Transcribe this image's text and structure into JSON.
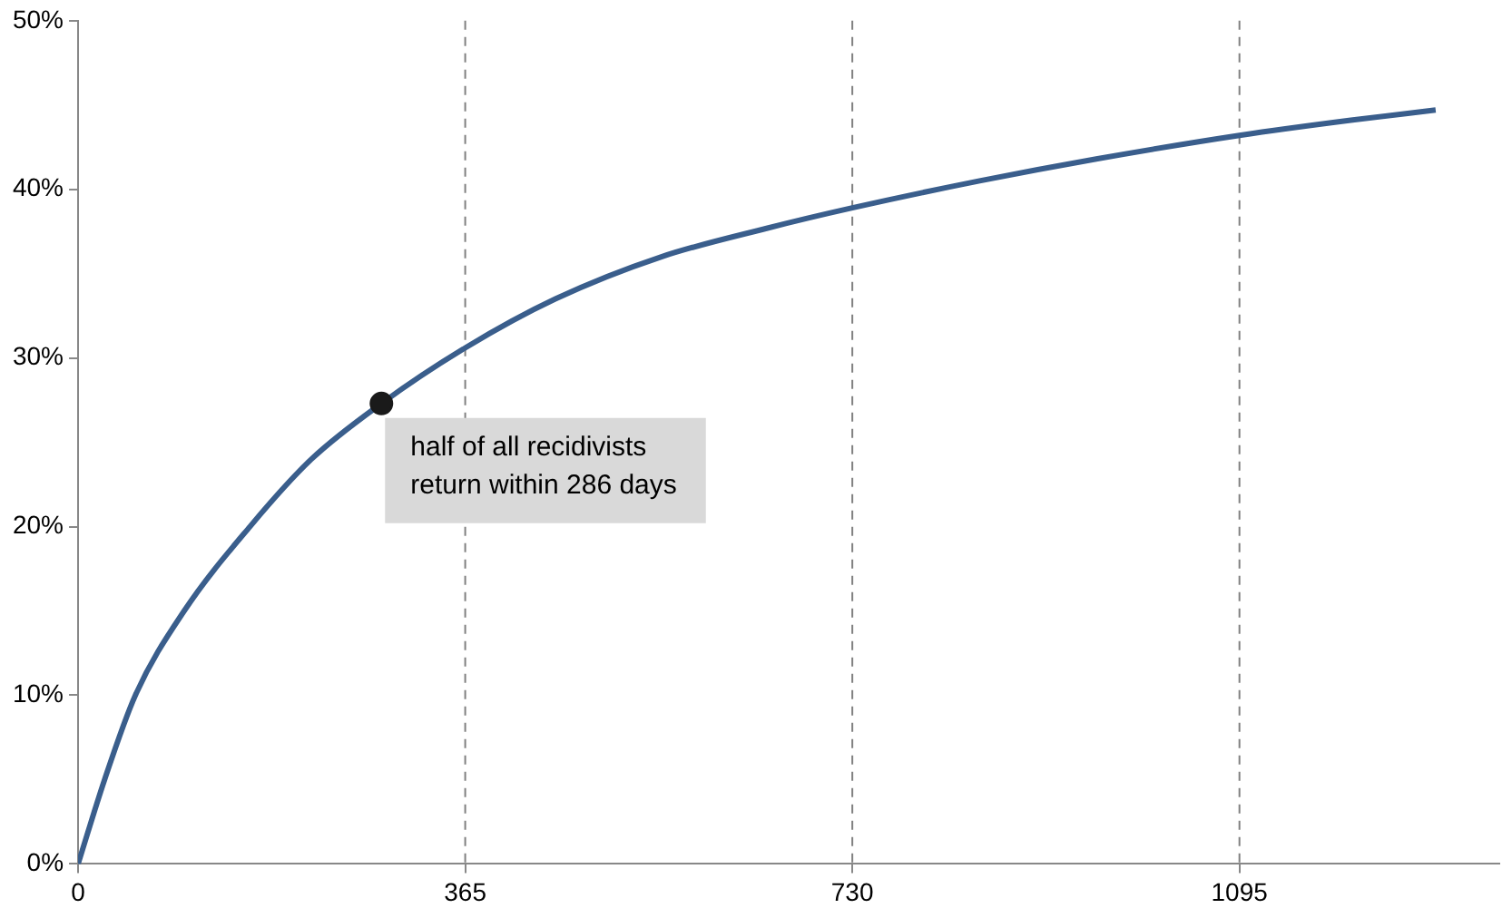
{
  "chart_data": {
    "type": "line",
    "xlim": [
      0,
      1340
    ],
    "xticks": [
      0,
      365,
      730,
      1095
    ],
    "ylim": [
      0,
      50
    ],
    "yticks": [
      {
        "value": 0,
        "label": "0%"
      },
      {
        "value": 10,
        "label": "10%"
      },
      {
        "value": 20,
        "label": "20%"
      },
      {
        "value": 30,
        "label": "30%"
      },
      {
        "value": 40,
        "label": "40%"
      },
      {
        "value": 50,
        "label": "50%"
      }
    ],
    "grid": false,
    "legend": false,
    "series": [
      {
        "color": "#3a5e8c",
        "marker": "none",
        "x": [
          0,
          25,
          54,
          100,
          162,
          220,
          286,
          365,
          450,
          550,
          650,
          730,
          850,
          960,
          1095,
          1200,
          1280
        ],
        "values": [
          0,
          5,
          10,
          15,
          20,
          24,
          27.3,
          30.6,
          33.5,
          36,
          37.7,
          38.9,
          40.5,
          41.8,
          43.2,
          44.1,
          44.7
        ]
      },
      {
        "type": "scatter",
        "color": "#1a1a1a",
        "marker": "circle",
        "x": [
          286
        ],
        "values": [
          27.3
        ]
      }
    ],
    "ref_lines": [
      {
        "axis": "x",
        "value": 365,
        "color": "#808080",
        "line_style": "dashed"
      },
      {
        "axis": "x",
        "value": 730,
        "color": "#808080",
        "line_style": "dashed"
      },
      {
        "axis": "x",
        "value": 1095,
        "color": "#808080",
        "line_style": "dashed"
      }
    ],
    "annotations": [
      {
        "text": "half of all recidivists\nreturn within 286 days",
        "x": 286,
        "y": 27.3
      }
    ]
  }
}
